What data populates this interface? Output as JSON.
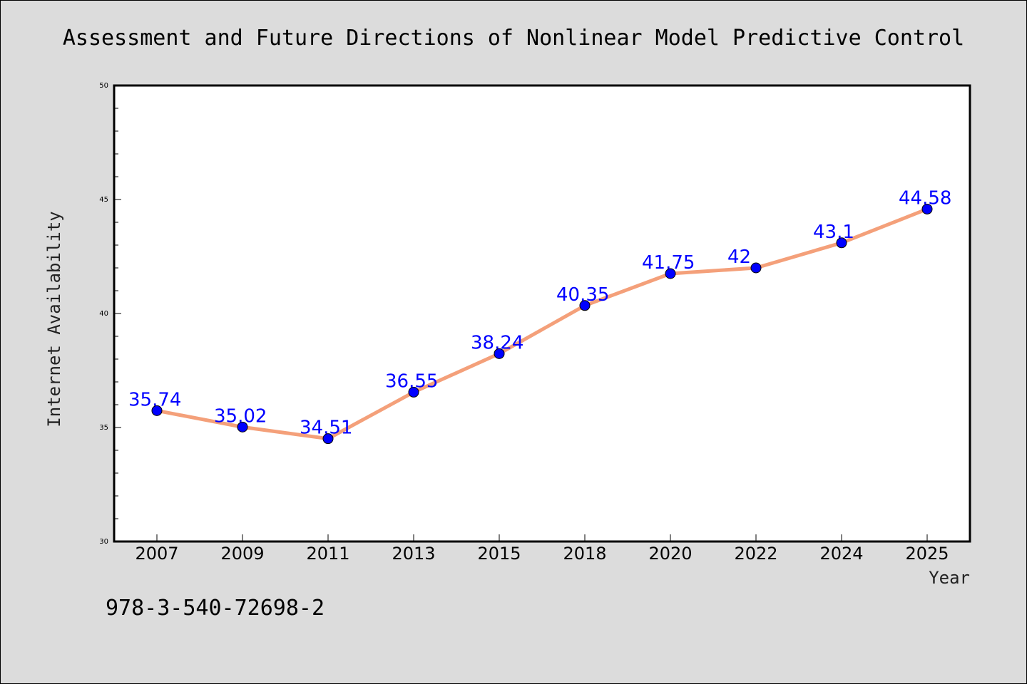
{
  "chart_data": {
    "type": "line",
    "title": "Assessment and Future Directions of Nonlinear Model Predictive Control",
    "xlabel": "Year",
    "ylabel": "Internet Availability",
    "categories": [
      "2007",
      "2009",
      "2011",
      "2013",
      "2015",
      "2018",
      "2020",
      "2022",
      "2024",
      "2025"
    ],
    "values": [
      35.74,
      35.02,
      34.51,
      36.55,
      38.24,
      40.35,
      41.75,
      42,
      43.1,
      44.58
    ],
    "data_labels": [
      "35.74",
      "35.02",
      "34.51",
      "36.55",
      "38.24",
      "40.35",
      "41.75",
      "42",
      "43.1",
      "44.58"
    ],
    "ylim": [
      30,
      50
    ],
    "yticks": [
      "30",
      "35",
      "40",
      "45",
      "50"
    ],
    "grid": false,
    "line_color": "#f4a07a",
    "marker_color": "#0000ff",
    "label_color": "#0000ff"
  },
  "footer": {
    "isbn": "978-3-540-72698-2"
  }
}
